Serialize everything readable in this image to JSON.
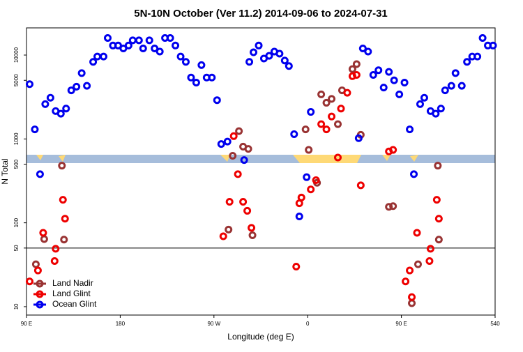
{
  "chart_data": {
    "type": "scatter",
    "title": "5N-10N October (Ver 11.2)   2014-09-06 to 2024-07-31",
    "x_label": "Longitude (deg E)",
    "y_label": "N Total",
    "xlim": [
      90,
      540
    ],
    "xticks": [
      {
        "value": 90,
        "label": "90 E"
      },
      180,
      {
        "value": 270,
        "label": "90 W"
      },
      {
        "value": 360,
        "label": "0"
      },
      {
        "value": 450,
        "label": "90 E"
      },
      540
    ],
    "ylim": [
      7.94,
      21100
    ],
    "yticks": [
      10,
      50,
      100,
      500,
      1000,
      5000,
      10000
    ],
    "log_y": true,
    "hline": 50,
    "legend": "lower left",
    "series": [
      {
        "name": "Land Nadir",
        "color": "#993333",
        "x": [
          99,
          107,
          124,
          126,
          284,
          288,
          294,
          298,
          303,
          307,
          358,
          361,
          369,
          373,
          378,
          383,
          389,
          393,
          403,
          407,
          411,
          438,
          442,
          466,
          460,
          485,
          486
        ],
        "values": [
          32,
          64,
          480,
          63,
          83,
          630,
          1240,
          810,
          760,
          71,
          1300,
          740,
          300,
          3400,
          2700,
          3000,
          1500,
          3800,
          6800,
          7800,
          1120,
          155,
          158,
          32,
          11,
          480,
          63
        ]
      },
      {
        "name": "Land Glint",
        "color": "#ee0000",
        "x": [
          93,
          101,
          106,
          118,
          117,
          125,
          127,
          279,
          285,
          289,
          293,
          298,
          302,
          306,
          349,
          352,
          354,
          363,
          368,
          373,
          378,
          383,
          389,
          392,
          398,
          403,
          407,
          411,
          438,
          442,
          454,
          458,
          460,
          465,
          478,
          477,
          484,
          486
        ],
        "values": [
          20,
          27,
          76,
          49,
          35,
          188,
          112,
          69,
          178,
          1080,
          380,
          178,
          139,
          87,
          30,
          171,
          200,
          250,
          322,
          1500,
          1300,
          1850,
          600,
          2300,
          3550,
          5600,
          5800,
          280,
          710,
          740,
          20,
          27,
          13,
          76,
          49,
          35,
          188,
          112
        ]
      },
      {
        "name": "Ocean Glint",
        "color": "#0000ee",
        "x": [
          93,
          98,
          103,
          108,
          113,
          118,
          123,
          128,
          133,
          138,
          143,
          148,
          154,
          158,
          164,
          168,
          173,
          178,
          183,
          188,
          192,
          198,
          202,
          208,
          213,
          218,
          223,
          228,
          233,
          238,
          243,
          248,
          253,
          258,
          263,
          268,
          273,
          277,
          283,
          299,
          304,
          308,
          313,
          318,
          323,
          328,
          333,
          338,
          342,
          347,
          352,
          359,
          363,
          409,
          413,
          418,
          423,
          428,
          433,
          438,
          443,
          448,
          453,
          458,
          462,
          468,
          472,
          478,
          483,
          488,
          492,
          498,
          502,
          508,
          513,
          518,
          523,
          528,
          533,
          538
        ],
        "values": [
          4500,
          1300,
          380,
          2600,
          3100,
          2150,
          2000,
          2300,
          3800,
          4200,
          6100,
          4300,
          8300,
          9600,
          9600,
          16000,
          13000,
          13000,
          12000,
          13000,
          15000,
          15000,
          12000,
          15000,
          12000,
          11000,
          16000,
          16000,
          13000,
          9600,
          8300,
          5400,
          4700,
          7600,
          5400,
          5400,
          2900,
          870,
          930,
          560,
          8300,
          10800,
          13000,
          9100,
          9800,
          11000,
          10400,
          8600,
          7400,
          1140,
          119,
          350,
          2100,
          1020,
          12000,
          11000,
          5800,
          6600,
          4100,
          6300,
          5000,
          3400,
          4700,
          1300,
          380,
          2600,
          3100,
          2150,
          2000,
          2300,
          3800,
          4300,
          6100,
          4300,
          8300,
          9600,
          9600,
          16000,
          13000,
          13000
        ]
      }
    ]
  }
}
